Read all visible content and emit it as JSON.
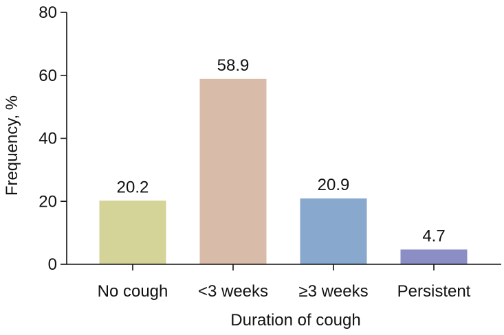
{
  "chart_data": {
    "type": "bar",
    "categories": [
      "No cough",
      "<3 weeks",
      "≥3 weeks",
      "Persistent"
    ],
    "values": [
      20.2,
      58.9,
      20.9,
      4.7
    ],
    "value_labels": [
      "20.2",
      "58.9",
      "20.9",
      "4.7"
    ],
    "bar_colors": [
      "#d4d398",
      "#d9bba9",
      "#88a8cd",
      "#8a8ec5"
    ],
    "xlabel": "Duration of cough",
    "ylabel": "Frequency, %",
    "ylim": [
      0,
      80
    ],
    "yticks": [
      0,
      20,
      40,
      60,
      80
    ],
    "grid": false
  }
}
